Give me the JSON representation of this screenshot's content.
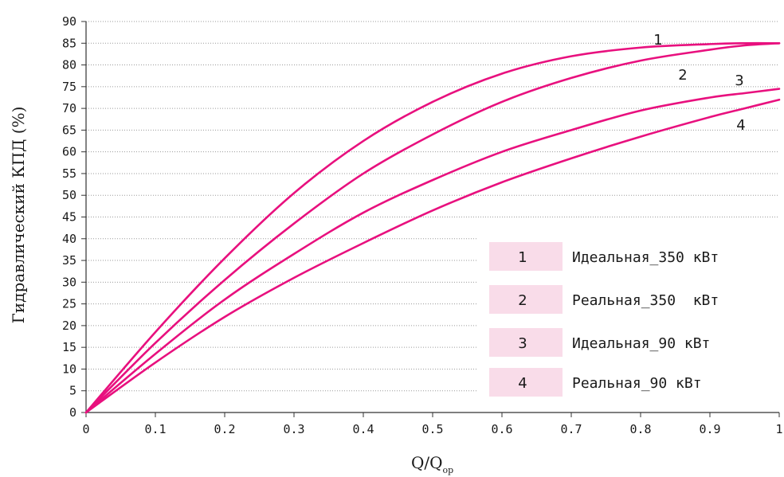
{
  "chart_data": {
    "type": "line",
    "xlabel_main": "Q/Q",
    "xlabel_sub": "ор",
    "ylabel": "Гидравлический КПД (%)",
    "xlim": [
      0,
      1
    ],
    "ylim": [
      0,
      90
    ],
    "x_ticks": [
      "0",
      "0.1",
      "0.2",
      "0.3",
      "0.4",
      "0.5",
      "0.6",
      "0.7",
      "0.8",
      "0.9",
      "1"
    ],
    "y_ticks": [
      "0",
      "5",
      "10",
      "15",
      "20",
      "25",
      "30",
      "35",
      "40",
      "45",
      "50",
      "55",
      "60",
      "65",
      "70",
      "75",
      "80",
      "85",
      "90"
    ],
    "grid": "horizontal-dotted",
    "line_color": "#e8107e",
    "legend_box_color": "#f9dce9",
    "legend_placement": "bottom-right",
    "series": [
      {
        "name": "Идеальная_350 кВт",
        "number": "1",
        "x": [
          0,
          0.1,
          0.2,
          0.3,
          0.4,
          0.5,
          0.6,
          0.7,
          0.8,
          0.9,
          0.95,
          1.0
        ],
        "y": [
          0,
          18.5,
          35.5,
          50.5,
          62.5,
          71.5,
          78,
          82,
          84,
          84.8,
          85,
          85
        ]
      },
      {
        "name": "Реальная_350  кВт",
        "number": "2",
        "x": [
          0,
          0.1,
          0.2,
          0.3,
          0.4,
          0.5,
          0.6,
          0.7,
          0.8,
          0.9,
          0.95,
          1.0
        ],
        "y": [
          0,
          16,
          30.5,
          43.5,
          55,
          64,
          71.5,
          77,
          81,
          83.5,
          84.5,
          85
        ]
      },
      {
        "name": "Идеальная_90 кВт",
        "number": "3",
        "x": [
          0,
          0.1,
          0.2,
          0.3,
          0.4,
          0.5,
          0.6,
          0.7,
          0.8,
          0.9,
          0.95,
          1.0
        ],
        "y": [
          0,
          13.5,
          26,
          36.5,
          46,
          53.5,
          60,
          65,
          69.5,
          72.5,
          73.5,
          74.5
        ]
      },
      {
        "name": "Реальная_90 кВт",
        "number": "4",
        "x": [
          0,
          0.1,
          0.2,
          0.3,
          0.4,
          0.5,
          0.6,
          0.7,
          0.8,
          0.9,
          0.95,
          1.0
        ],
        "y": [
          0,
          11.5,
          22,
          31,
          39,
          46.5,
          53,
          58.5,
          63.5,
          68,
          70,
          72
        ]
      }
    ]
  }
}
